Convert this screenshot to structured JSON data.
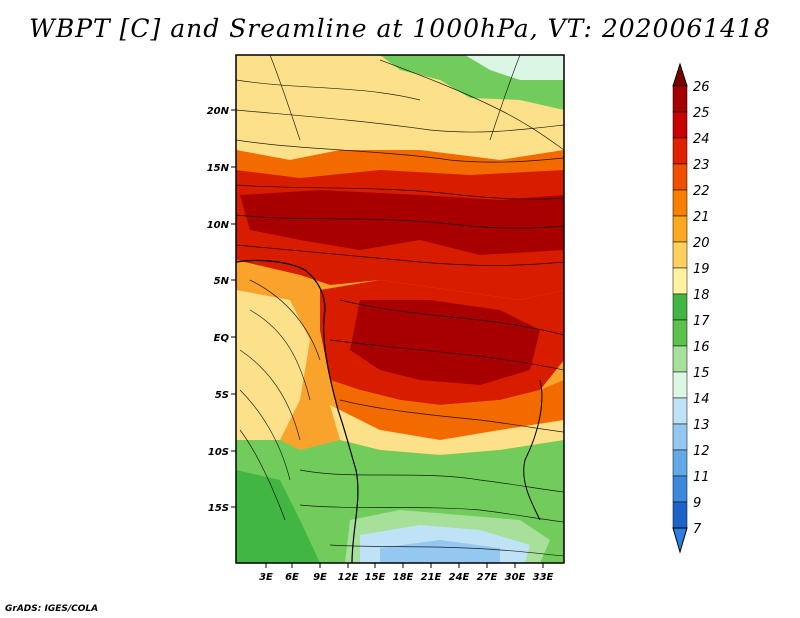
{
  "title": "WBPT [C] and Sreamline at 1000hPa, VT: 2020061418",
  "footer": "GrADS: IGES/COLA",
  "map": {
    "lat_labels": [
      "20N",
      "15N",
      "10N",
      "5N",
      "EQ",
      "5S",
      "10S",
      "15S"
    ],
    "lon_labels": [
      "3E",
      "6E",
      "9E",
      "12E",
      "15E",
      "18E",
      "21E",
      "24E",
      "27E",
      "30E",
      "33E"
    ]
  },
  "colorbar": {
    "labels": [
      "26",
      "25",
      "24",
      "23",
      "22",
      "21",
      "20",
      "19",
      "18",
      "17",
      "16",
      "15",
      "14",
      "13",
      "12",
      "11",
      "9",
      "7"
    ],
    "colors": [
      "#a50000",
      "#c80000",
      "#e12000",
      "#f04e00",
      "#f77f00",
      "#fca820",
      "#fdd060",
      "#fff2a0",
      "#f7f7c0",
      "#41b643",
      "#72cc5c",
      "#a6e09a",
      "#dcf6e4",
      "#bfe2f7",
      "#95c8f0",
      "#63a9e7",
      "#3b88dd",
      "#1b63c8"
    ]
  },
  "colors": {
    "very_hot": "#a80000",
    "hot": "#d81c00",
    "orange": "#f26a00",
    "light_orange": "#f9a32c",
    "pale_yellow": "#fde08a",
    "green": "#6ccc56",
    "light_blue": "#b5dcf6"
  }
}
